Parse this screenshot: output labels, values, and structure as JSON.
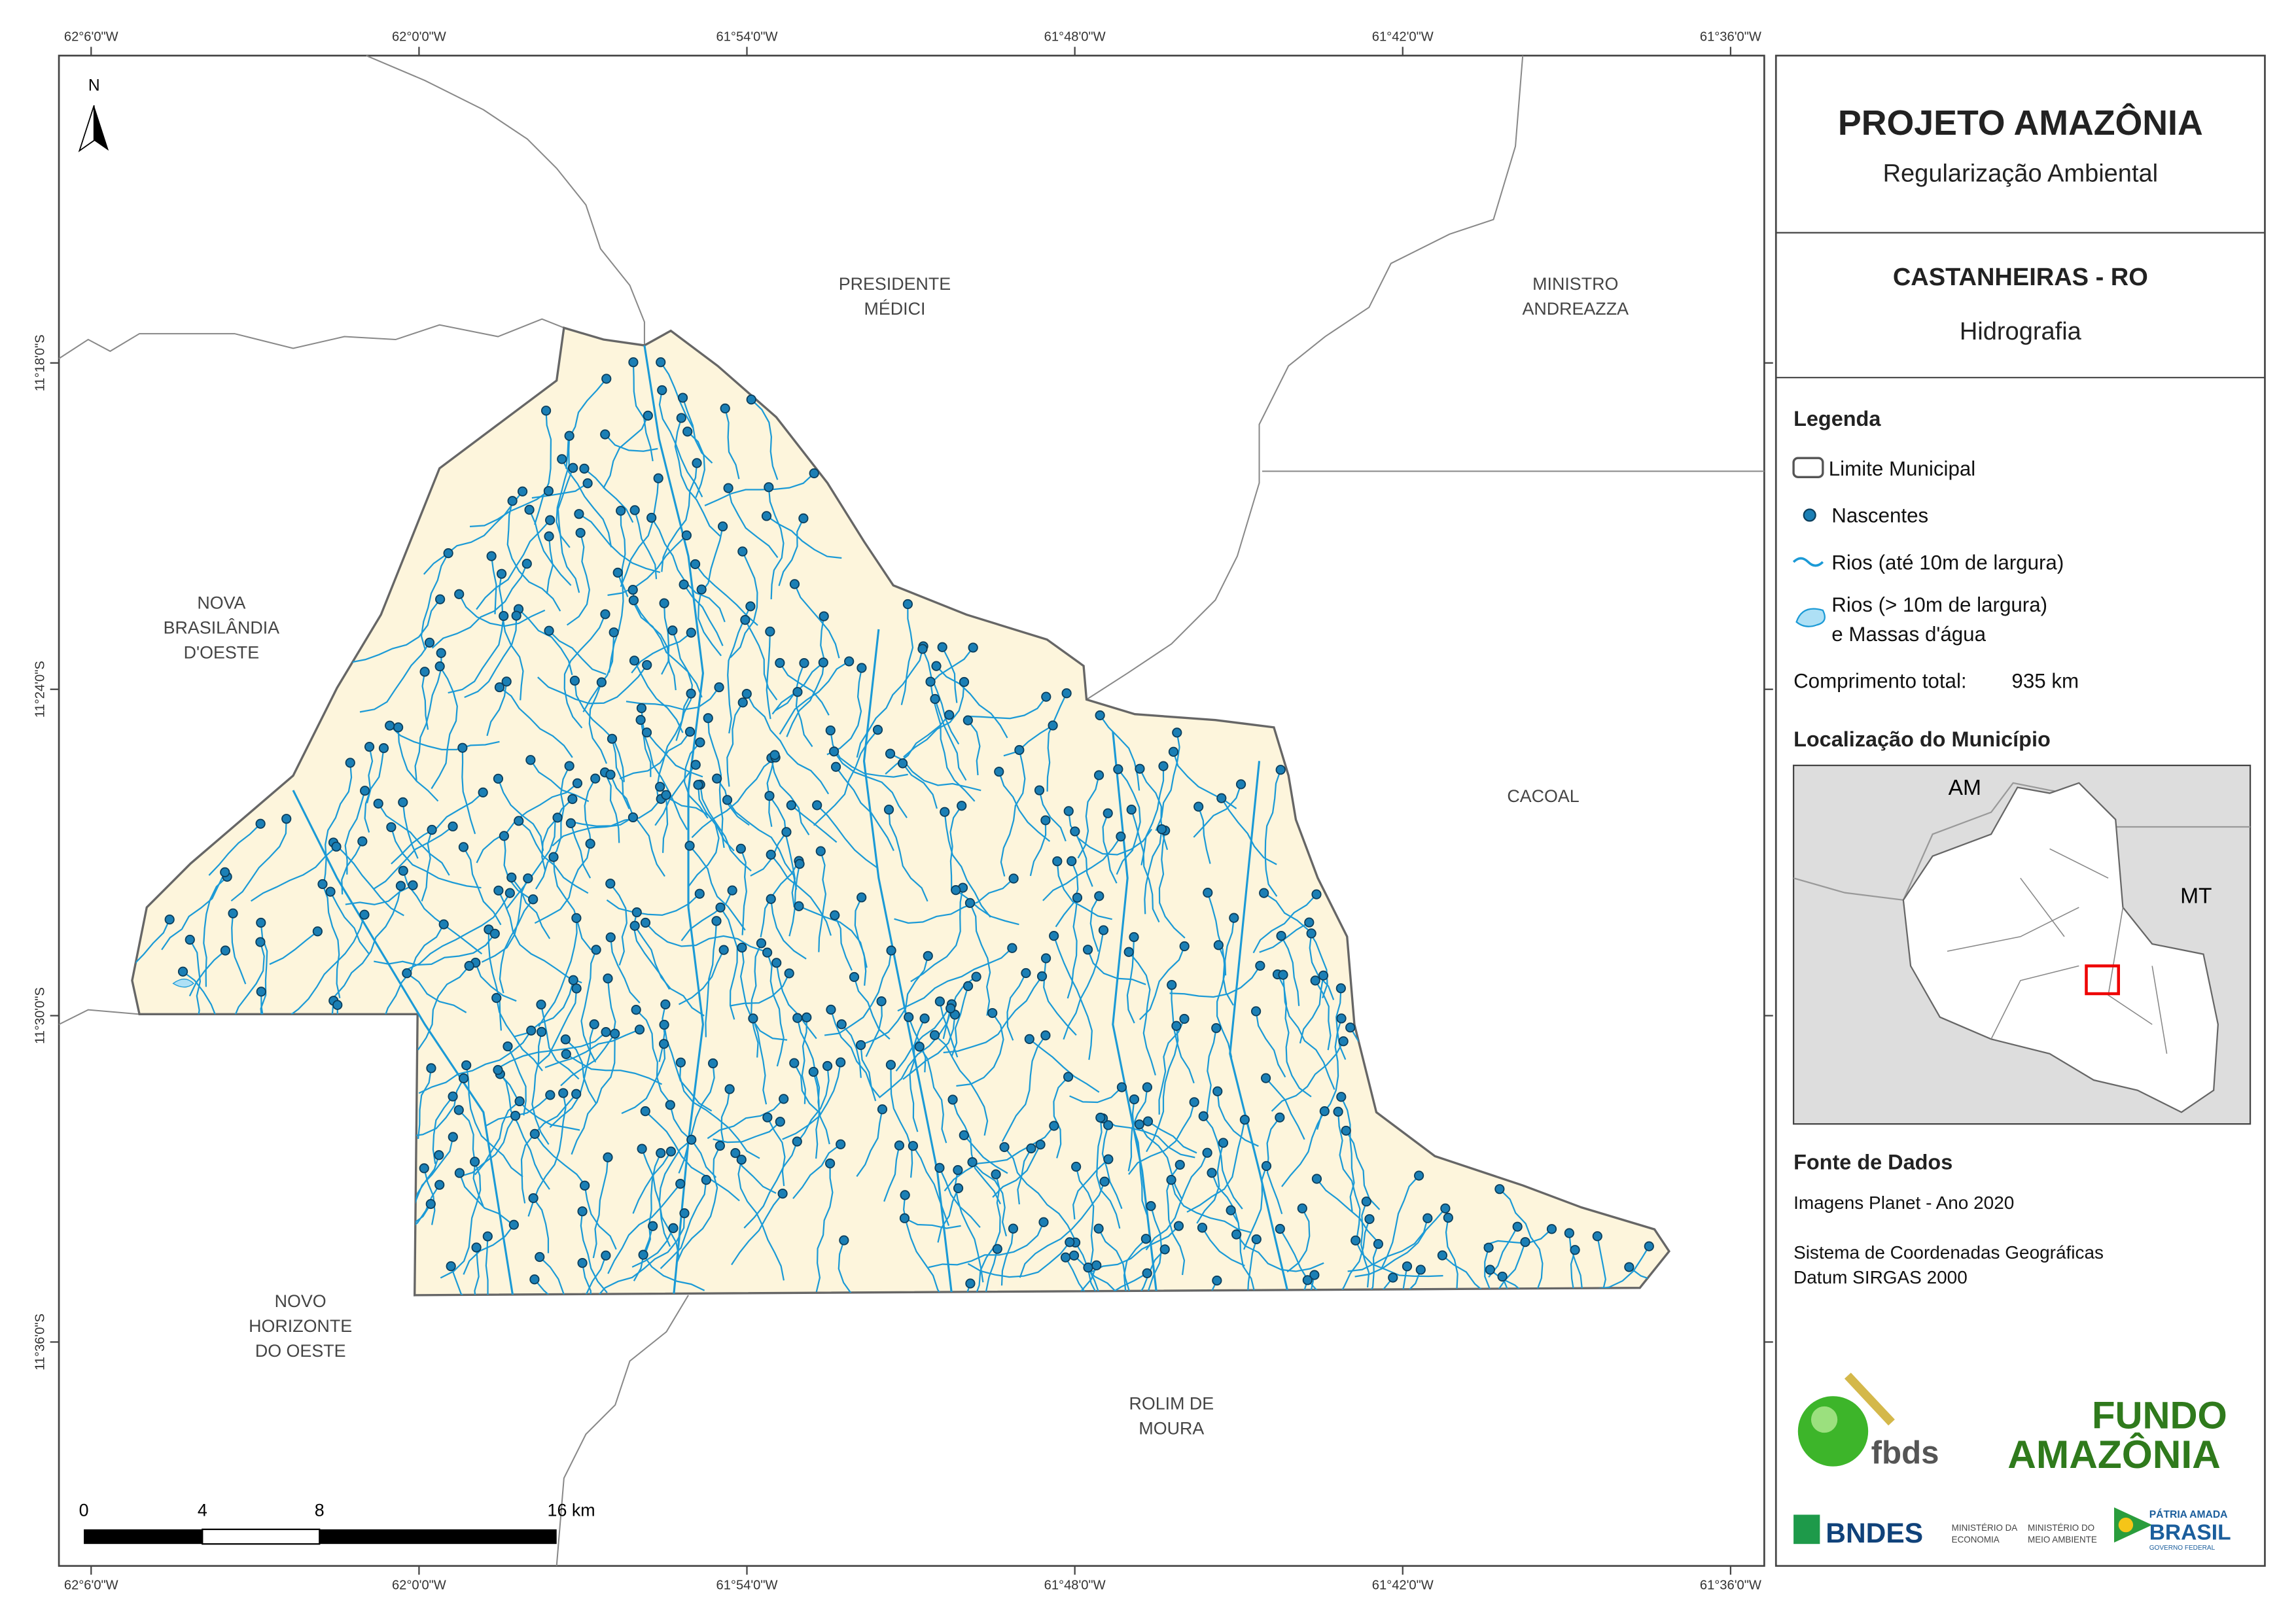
{
  "header": {
    "title": "PROJETO AMAZÔNIA",
    "subtitle": "Regularização Ambiental"
  },
  "municipality": {
    "name": "CASTANHEIRAS - RO",
    "theme": "Hidrografia"
  },
  "legend": {
    "title": "Legenda",
    "items": [
      "Limite Municipal",
      "Nascentes",
      "Rios (até 10m de largura)",
      "Rios (> 10m de largura)",
      "e Massas d'água"
    ],
    "total_label": "Comprimento total:",
    "total_value": "935 km"
  },
  "location": {
    "title": "Localização do Município",
    "labels": [
      "AM",
      "MT"
    ]
  },
  "sources": {
    "title": "Fonte de Dados",
    "lines": [
      "Imagens Planet - Ano 2020",
      "Sistema de Coordenadas Geográficas",
      "Datum SIRGAS 2000"
    ]
  },
  "map": {
    "north": "N",
    "neighbors": [
      [
        "PRESIDENTE",
        "MÉDICI"
      ],
      [
        "MINISTRO",
        "ANDREAZZA"
      ],
      [
        "NOVA",
        "BRASILÂNDIA",
        "D'OESTE"
      ],
      [
        "CACOAL"
      ],
      [
        "NOVO",
        "HORIZONTE",
        "DO OESTE"
      ],
      [
        "ROLIM DE",
        "MOURA"
      ]
    ],
    "lon_ticks": [
      "62°6'0\"W",
      "62°0'0\"W",
      "61°54'0\"W",
      "61°48'0\"W",
      "61°42'0\"W",
      "61°36'0\"W"
    ],
    "lat_ticks": [
      "11°18'0\"S",
      "11°24'0\"S",
      "11°30'0\"S",
      "11°36'0\"S"
    ],
    "scale_labels": [
      "0",
      "4",
      "8",
      "16 km"
    ]
  },
  "logos": {
    "fbds": "fbds",
    "fundo": [
      "FUNDO",
      "AMAZÔNIA"
    ],
    "bndes": "BNDES",
    "ministries": [
      "MINISTÉRIO DA",
      "ECONOMIA",
      "MINISTÉRIO DO",
      "MEIO AMBIENTE"
    ],
    "gov": [
      "PÁTRIA AMADA",
      "BRASIL",
      "GOVERNO FEDERAL"
    ]
  }
}
